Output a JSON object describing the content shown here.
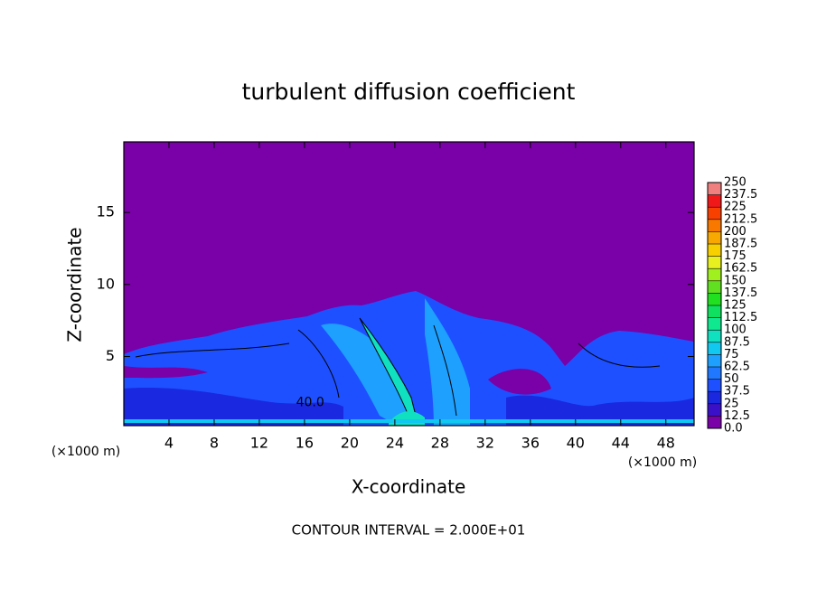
{
  "chart_data": {
    "type": "contour",
    "title": "turbulent diffusion coefficient",
    "x_label": "X-coordinate",
    "y_label": "Z-coordinate",
    "x_unit": "(×1000 m)",
    "y_unit": "(×1000 m)",
    "footer": "CONTOUR INTERVAL = 2.000E+01",
    "annotations": [
      {
        "text": "40.0",
        "x": 16.5,
        "y": 1.8
      }
    ],
    "xlim": [
      0,
      50.5
    ],
    "ylim": [
      0.2,
      19.9
    ],
    "xticks": [
      4,
      8,
      12,
      16,
      20,
      24,
      28,
      32,
      36,
      40,
      44,
      48
    ],
    "yticks": [
      5,
      10,
      15
    ],
    "colorbar": {
      "ticks": [
        {
          "value": 0,
          "label": "0.0"
        },
        12.5,
        25,
        37.5,
        50,
        62.5,
        75,
        87.5,
        100,
        112.5,
        125,
        137.5,
        150,
        162.5,
        175,
        187.5,
        200,
        212.5,
        225,
        237.5,
        250
      ],
      "colors": [
        "#7a00a8",
        "#3a10c8",
        "#1a28e0",
        "#1e50ff",
        "#1f78ff",
        "#1ea0ff",
        "#10c8f0",
        "#10e0c0",
        "#10e890",
        "#10e060",
        "#20e020",
        "#60e020",
        "#a0f020",
        "#e8f020",
        "#f8d000",
        "#f8a800",
        "#f87800",
        "#f84000",
        "#f01818",
        "#f08080"
      ]
    }
  }
}
